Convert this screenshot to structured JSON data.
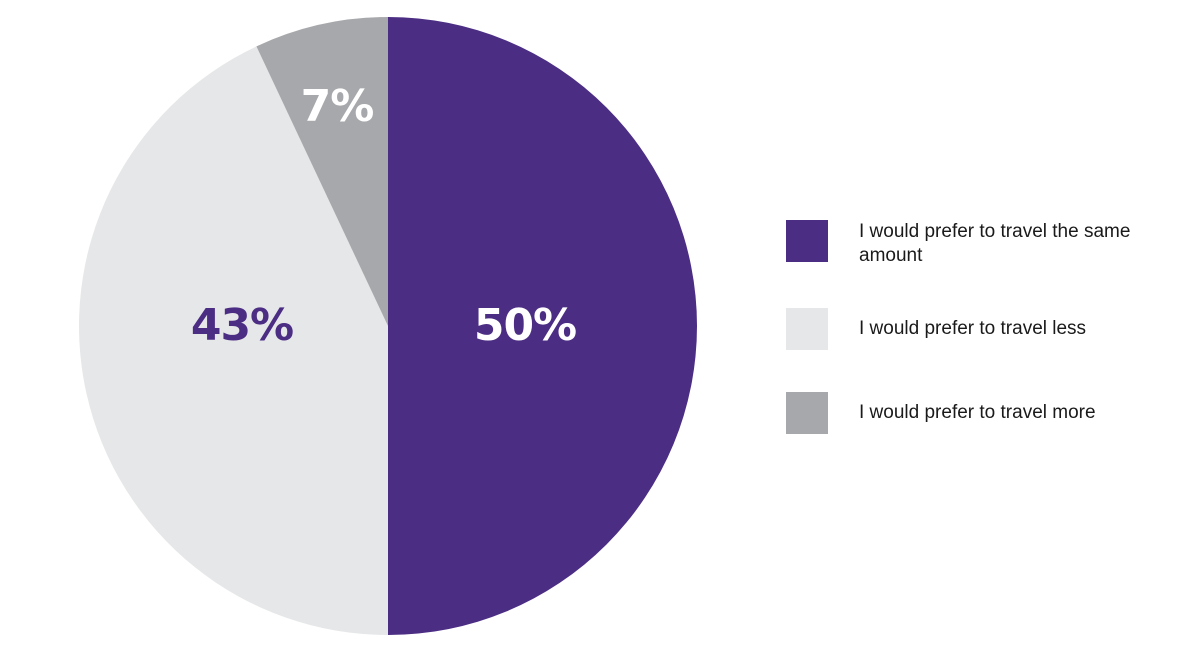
{
  "chart_data": {
    "type": "pie",
    "title": "",
    "slices": [
      {
        "label": "I would prefer to travel the same amount",
        "value": 50,
        "display": "50%",
        "color": "#4b2d83",
        "label_color": "#ffffff"
      },
      {
        "label": "I would prefer to travel less",
        "value": 43,
        "display": "43%",
        "color": "#e6e7e8",
        "label_color": "#4b2d83"
      },
      {
        "label": "I would prefer to travel more",
        "value": 7,
        "display": "7%",
        "color": "#a7a8ab",
        "label_color": "#ffffff"
      }
    ],
    "start_angle": "12 o'clock",
    "direction": "clockwise",
    "legend_position": "right"
  }
}
